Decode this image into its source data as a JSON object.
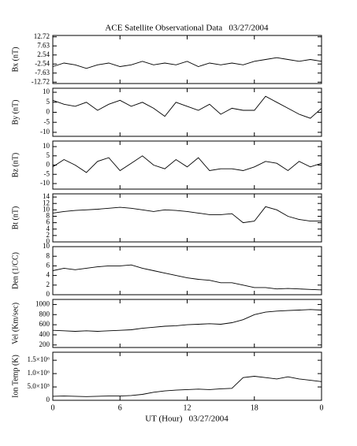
{
  "chart_data": [
    {
      "type": "line",
      "title": "ACE Satellite Observational Data   03/27/2004",
      "ylabel": "Bx (nT)",
      "color": "#000000",
      "x": [
        0,
        1,
        2,
        3,
        4,
        5,
        6,
        7,
        8,
        9,
        10,
        11,
        12,
        13,
        14,
        15,
        16,
        17,
        18,
        19,
        20,
        21,
        22,
        23,
        24
      ],
      "values": [
        -4,
        -2,
        -3,
        -5,
        -3,
        -2,
        -4,
        -3,
        -1,
        -3,
        -2,
        -3,
        -1,
        -4,
        -2,
        -3,
        -2,
        -3,
        -1,
        0,
        1,
        0,
        -1,
        0,
        -1
      ],
      "xlim": [
        0,
        24
      ],
      "ylim": [
        -13.5,
        13.5
      ],
      "yticks": [
        12.72,
        7.63,
        2.54,
        -2.54,
        -7.63,
        -12.72
      ]
    },
    {
      "type": "line",
      "ylabel": "By (nT)",
      "color": "#000000",
      "x": [
        0,
        1,
        2,
        3,
        4,
        5,
        6,
        7,
        8,
        9,
        10,
        11,
        12,
        13,
        14,
        15,
        16,
        17,
        18,
        19,
        20,
        21,
        22,
        23,
        24
      ],
      "values": [
        6,
        4,
        3,
        5,
        1,
        4,
        6,
        3,
        5,
        2,
        -2,
        5,
        3,
        1,
        4,
        -1,
        2,
        1,
        1,
        8,
        5,
        2,
        -1,
        -3,
        2
      ],
      "xlim": [
        0,
        24
      ],
      "ylim": [
        -12,
        12
      ],
      "yticks": [
        10,
        5,
        0,
        -5,
        -10
      ]
    },
    {
      "type": "line",
      "ylabel": "Bz (nT)",
      "color": "#000000",
      "x": [
        0,
        1,
        2,
        3,
        4,
        5,
        6,
        7,
        8,
        9,
        10,
        11,
        12,
        13,
        14,
        15,
        16,
        17,
        18,
        19,
        20,
        21,
        22,
        23,
        24
      ],
      "values": [
        -1,
        3,
        0,
        -4,
        2,
        4,
        -3,
        1,
        5,
        0,
        -2,
        3,
        -1,
        4,
        -3,
        -2,
        -2,
        -3,
        -1,
        2,
        1,
        -3,
        2,
        -1,
        1
      ],
      "xlim": [
        0,
        24
      ],
      "ylim": [
        -13,
        13
      ],
      "yticks": [
        10,
        5,
        0,
        -5,
        -10
      ]
    },
    {
      "type": "line",
      "ylabel": "Bt (nT)",
      "color": "#000000",
      "x": [
        0,
        1,
        2,
        3,
        4,
        5,
        6,
        7,
        8,
        9,
        10,
        11,
        12,
        13,
        14,
        15,
        16,
        17,
        18,
        19,
        20,
        21,
        22,
        23,
        24
      ],
      "values": [
        9,
        9.5,
        9.8,
        10,
        10.2,
        10.5,
        10.8,
        10.5,
        10,
        9.5,
        10,
        9.8,
        9.5,
        9,
        8.5,
        8.5,
        8.8,
        6,
        6.5,
        11,
        10,
        8,
        7,
        6.5,
        6.5
      ],
      "xlim": [
        0,
        24
      ],
      "ylim": [
        0,
        15
      ],
      "yticks": [
        14,
        12,
        10,
        8,
        6,
        4,
        2,
        0
      ]
    },
    {
      "type": "line",
      "ylabel": "Den (1/CC)",
      "color": "#000000",
      "x": [
        0,
        1,
        2,
        3,
        4,
        5,
        6,
        7,
        8,
        9,
        10,
        11,
        12,
        13,
        14,
        15,
        16,
        17,
        18,
        19,
        20,
        21,
        22,
        23,
        24
      ],
      "values": [
        5,
        5.5,
        5.2,
        5.5,
        5.8,
        6,
        6,
        6.2,
        5.5,
        5,
        4.5,
        4,
        3.5,
        3.2,
        3,
        2.5,
        2.5,
        2,
        1.5,
        1.5,
        1.2,
        1.3,
        1.2,
        1.1,
        1
      ],
      "xlim": [
        0,
        24
      ],
      "ylim": [
        0,
        10
      ],
      "yticks": [
        10,
        8,
        6,
        4,
        2,
        0
      ]
    },
    {
      "type": "line",
      "ylabel": "Vel (Km/sec)",
      "color": "#000000",
      "x": [
        0,
        1,
        2,
        3,
        4,
        5,
        6,
        7,
        8,
        9,
        10,
        11,
        12,
        13,
        14,
        15,
        16,
        17,
        18,
        19,
        20,
        21,
        22,
        23,
        24
      ],
      "values": [
        490,
        480,
        470,
        480,
        470,
        480,
        490,
        500,
        530,
        550,
        570,
        580,
        600,
        610,
        620,
        610,
        640,
        700,
        800,
        850,
        870,
        880,
        890,
        900,
        890
      ],
      "xlim": [
        0,
        24
      ],
      "ylim": [
        150,
        1100
      ],
      "yticks": [
        1000,
        800,
        600,
        400,
        200
      ]
    },
    {
      "type": "line",
      "ylabel": "Ion Temp (K)",
      "xlabel": "UT (Hour)   03/27/2004",
      "color": "#000000",
      "x": [
        0,
        1,
        2,
        3,
        4,
        5,
        6,
        7,
        8,
        9,
        10,
        11,
        12,
        13,
        14,
        15,
        16,
        17,
        18,
        19,
        20,
        21,
        22,
        23,
        24
      ],
      "values": [
        150000,
        160000,
        150000,
        140000,
        150000,
        160000,
        160000,
        180000,
        220000,
        300000,
        350000,
        380000,
        400000,
        420000,
        400000,
        430000,
        450000,
        850000,
        900000,
        850000,
        800000,
        880000,
        800000,
        750000,
        700000
      ],
      "xlim": [
        0,
        24
      ],
      "ylim": [
        0,
        1800000
      ],
      "yticks": [
        {
          "value": 1500000,
          "label": "1.5×10⁶"
        },
        {
          "value": 1000000,
          "label": "1.0×10⁶"
        },
        {
          "value": 500000,
          "label": "5.0×10⁵"
        },
        0
      ],
      "xticks": [
        0,
        6,
        12,
        18,
        {
          "value": 24,
          "label": "0"
        }
      ]
    }
  ]
}
